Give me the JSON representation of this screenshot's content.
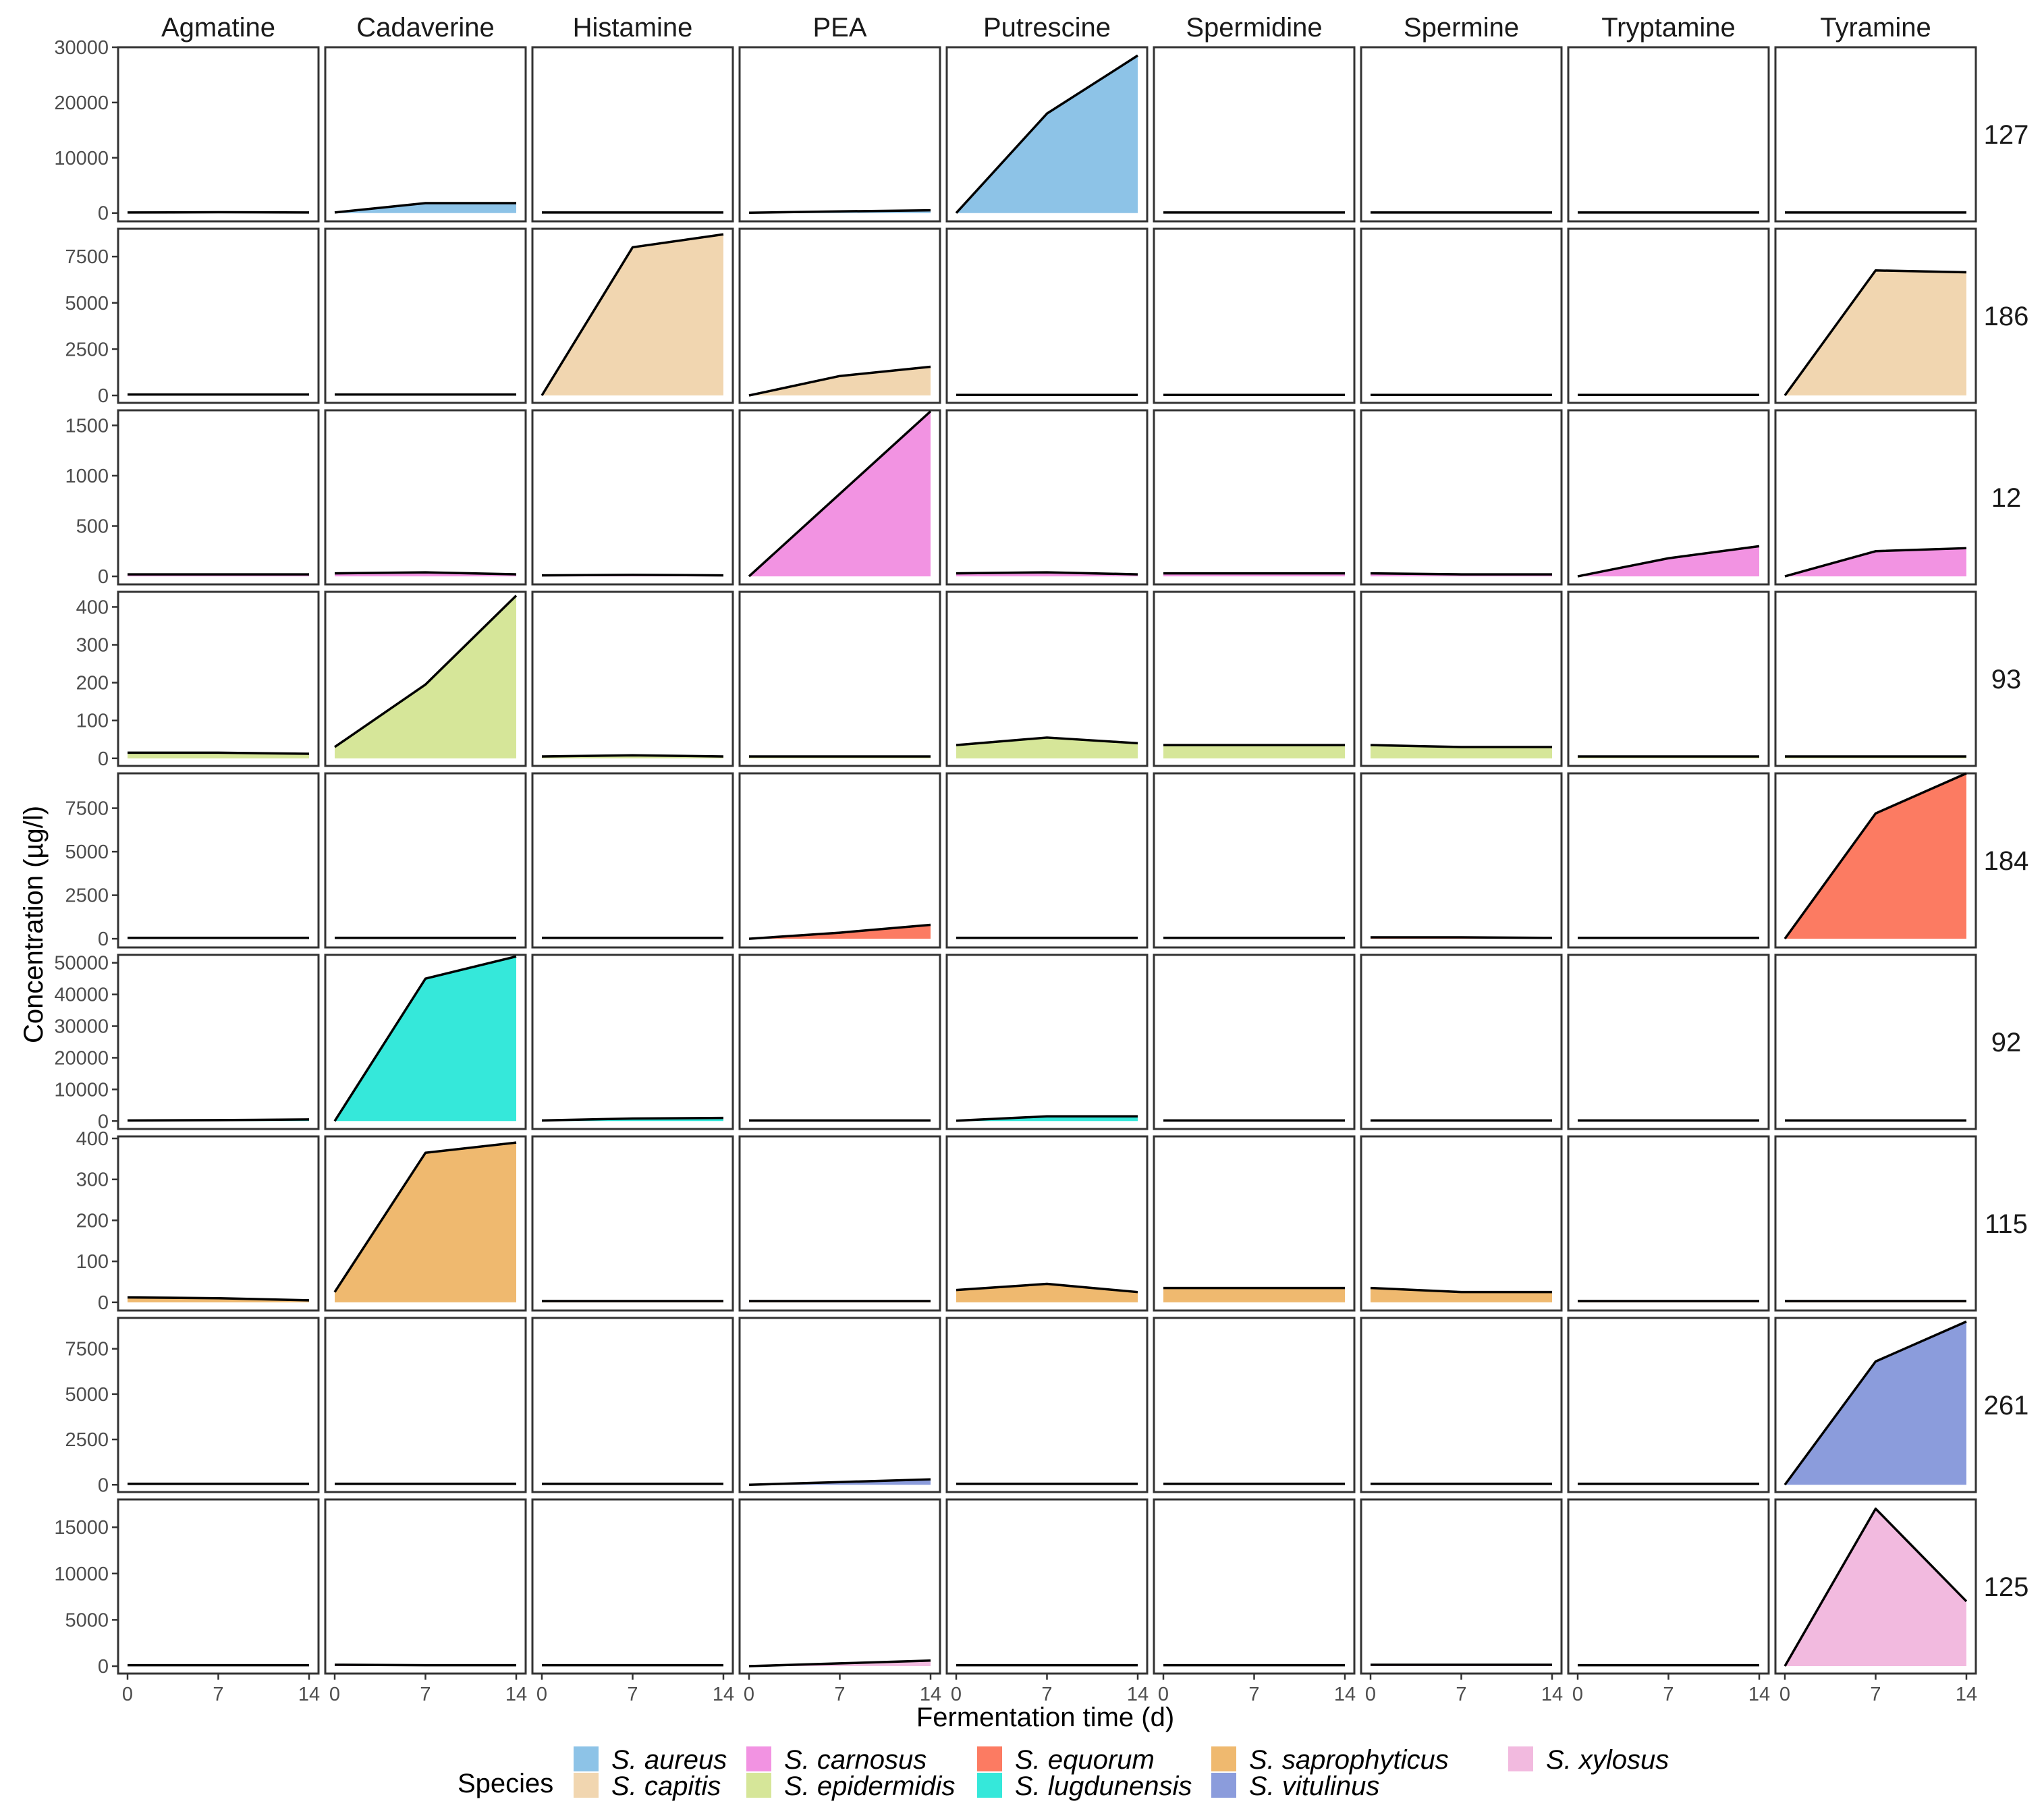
{
  "chart_data": {
    "type": "area",
    "title": "",
    "xlabel": "Fermentation time (d)",
    "ylabel": "Concentration (µg/l)",
    "x": [
      0,
      7,
      14
    ],
    "x_ticks": [
      "0",
      "7",
      "14"
    ],
    "columns": [
      "Agmatine",
      "Cadaverine",
      "Histamine",
      "PEA",
      "Putrescine",
      "Spermidine",
      "Spermine",
      "Tryptamine",
      "Tyramine"
    ],
    "legend_title": "Species",
    "legend_position": "bottom",
    "legend": [
      {
        "label": "S. aureus",
        "color": "#8dc3e7"
      },
      {
        "label": "S. capitis",
        "color": "#f1d6b0"
      },
      {
        "label": "S. carnosus",
        "color": "#f293e2"
      },
      {
        "label": "S. epidermidis",
        "color": "#d6e699"
      },
      {
        "label": "S. equorum",
        "color": "#fc7b62"
      },
      {
        "label": "S. lugdunensis",
        "color": "#35e8da"
      },
      {
        "label": "S. saprophyticus",
        "color": "#efb96f"
      },
      {
        "label": "S. vitulinus",
        "color": "#8b9cdc"
      },
      {
        "label": "S. xylosus",
        "color": "#f2badf"
      }
    ],
    "rows": [
      {
        "strain": "127",
        "species": "S. aureus",
        "color": "#8dc3e7",
        "ylim": [
          -1500,
          30000
        ],
        "ticks": [
          0,
          10000,
          20000,
          30000
        ],
        "series": [
          [
            100,
            150,
            100
          ],
          [
            100,
            1800,
            1800
          ],
          [
            100,
            100,
            100
          ],
          [
            50,
            300,
            500
          ],
          [
            0,
            18000,
            28500
          ],
          [
            100,
            100,
            100
          ],
          [
            100,
            100,
            100
          ],
          [
            100,
            100,
            100
          ],
          [
            100,
            100,
            100
          ]
        ]
      },
      {
        "strain": "186",
        "species": "S. capitis",
        "color": "#f1d6b0",
        "ylim": [
          -400,
          9000
        ],
        "ticks": [
          0,
          2500,
          5000,
          7500
        ],
        "series": [
          [
            50,
            50,
            50
          ],
          [
            50,
            50,
            50
          ],
          [
            0,
            8000,
            8700
          ],
          [
            0,
            1050,
            1550
          ],
          [
            30,
            30,
            30
          ],
          [
            30,
            30,
            30
          ],
          [
            30,
            30,
            30
          ],
          [
            30,
            30,
            30
          ],
          [
            0,
            6750,
            6650
          ]
        ]
      },
      {
        "strain": "12",
        "species": "S. carnosus",
        "color": "#f293e2",
        "ylim": [
          -80,
          1650
        ],
        "ticks": [
          0,
          500,
          1000,
          1500
        ],
        "series": [
          [
            20,
            20,
            20
          ],
          [
            30,
            40,
            20
          ],
          [
            10,
            15,
            10
          ],
          [
            0,
            820,
            1640
          ],
          [
            30,
            40,
            20
          ],
          [
            30,
            30,
            30
          ],
          [
            30,
            20,
            20
          ],
          [
            0,
            180,
            300
          ],
          [
            0,
            250,
            280
          ]
        ]
      },
      {
        "strain": "93",
        "species": "S. epidermidis",
        "color": "#d6e699",
        "ylim": [
          -20,
          440
        ],
        "ticks": [
          0,
          100,
          200,
          300,
          400
        ],
        "series": [
          [
            15,
            15,
            12
          ],
          [
            30,
            195,
            430
          ],
          [
            5,
            8,
            5
          ],
          [
            5,
            5,
            5
          ],
          [
            35,
            55,
            40
          ],
          [
            35,
            35,
            35
          ],
          [
            35,
            30,
            30
          ],
          [
            5,
            5,
            5
          ],
          [
            5,
            5,
            5
          ]
        ]
      },
      {
        "strain": "184",
        "species": "S. equorum",
        "color": "#fc7b62",
        "ylim": [
          -500,
          9500
        ],
        "ticks": [
          0,
          2500,
          5000,
          7500
        ],
        "series": [
          [
            50,
            50,
            50
          ],
          [
            50,
            50,
            50
          ],
          [
            50,
            50,
            50
          ],
          [
            0,
            350,
            800
          ],
          [
            50,
            50,
            50
          ],
          [
            50,
            50,
            50
          ],
          [
            80,
            80,
            50
          ],
          [
            50,
            50,
            50
          ],
          [
            0,
            7200,
            9500
          ]
        ]
      },
      {
        "strain": "92",
        "species": "S. lugdunensis",
        "color": "#35e8da",
        "ylim": [
          -2500,
          52500
        ],
        "ticks": [
          0,
          10000,
          20000,
          30000,
          40000,
          50000
        ],
        "series": [
          [
            200,
            300,
            500
          ],
          [
            0,
            45000,
            52000
          ],
          [
            200,
            800,
            1000
          ],
          [
            200,
            200,
            200
          ],
          [
            100,
            1500,
            1500
          ],
          [
            200,
            200,
            200
          ],
          [
            200,
            200,
            200
          ],
          [
            200,
            200,
            200
          ],
          [
            200,
            200,
            200
          ]
        ]
      },
      {
        "strain": "115",
        "species": "S. saprophyticus",
        "color": "#efb96f",
        "ylim": [
          -20,
          405
        ],
        "ticks": [
          0,
          100,
          200,
          300,
          400
        ],
        "series": [
          [
            12,
            10,
            5
          ],
          [
            25,
            365,
            390
          ],
          [
            3,
            3,
            3
          ],
          [
            3,
            3,
            3
          ],
          [
            30,
            45,
            25
          ],
          [
            35,
            35,
            35
          ],
          [
            35,
            25,
            25
          ],
          [
            3,
            3,
            3
          ],
          [
            3,
            3,
            3
          ]
        ]
      },
      {
        "strain": "261",
        "species": "S. vitulinus",
        "color": "#8b9cdc",
        "ylim": [
          -400,
          9200
        ],
        "ticks": [
          0,
          2500,
          5000,
          7500
        ],
        "series": [
          [
            50,
            50,
            50
          ],
          [
            50,
            50,
            50
          ],
          [
            50,
            50,
            50
          ],
          [
            0,
            150,
            300
          ],
          [
            50,
            50,
            50
          ],
          [
            50,
            50,
            50
          ],
          [
            50,
            50,
            50
          ],
          [
            50,
            50,
            50
          ],
          [
            0,
            6800,
            9000
          ]
        ]
      },
      {
        "strain": "125",
        "species": "S. xylosus",
        "color": "#f2badf",
        "ylim": [
          -800,
          18000
        ],
        "ticks": [
          0,
          5000,
          10000,
          15000
        ],
        "series": [
          [
            100,
            100,
            100
          ],
          [
            150,
            100,
            100
          ],
          [
            100,
            100,
            100
          ],
          [
            0,
            300,
            600
          ],
          [
            100,
            100,
            100
          ],
          [
            100,
            100,
            100
          ],
          [
            150,
            150,
            150
          ],
          [
            100,
            100,
            100
          ],
          [
            0,
            17000,
            7000
          ]
        ]
      }
    ]
  }
}
